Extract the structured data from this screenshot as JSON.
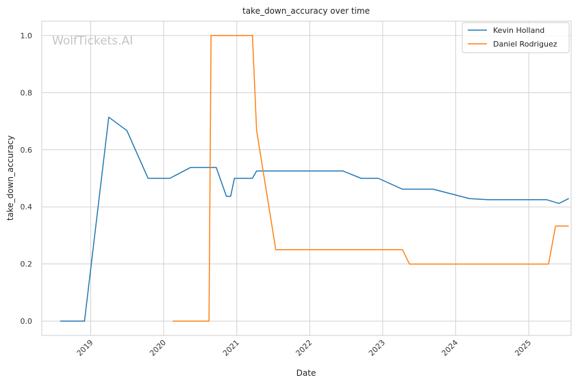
{
  "watermark": "WolfTickets.AI",
  "colors": {
    "grid": "#d0d0d0",
    "spine": "#cccccc",
    "kevin": "#1f77b4",
    "daniel": "#ff7f0e"
  },
  "chart_data": {
    "type": "line",
    "title": "take_down_accuracy over time",
    "xlabel": "Date",
    "ylabel": "take_down_accuracy",
    "x_type": "date",
    "xlim": [
      "2018-05-01",
      "2025-08-01"
    ],
    "ylim": [
      -0.05,
      1.05
    ],
    "x_ticks": [
      "2019",
      "2020",
      "2021",
      "2022",
      "2023",
      "2024",
      "2025"
    ],
    "y_ticks": [
      "0.0",
      "0.2",
      "0.4",
      "0.6",
      "0.8",
      "1.0"
    ],
    "grid": true,
    "legend_position": "top-right",
    "series": [
      {
        "name": "Kevin Holland",
        "color": "#1f77b4",
        "points": [
          [
            "2018-08-01",
            0.0
          ],
          [
            "2018-12-01",
            0.0
          ],
          [
            "2019-04-01",
            0.714
          ],
          [
            "2019-07-01",
            0.667
          ],
          [
            "2019-10-15",
            0.5
          ],
          [
            "2020-02-01",
            0.5
          ],
          [
            "2020-05-15",
            0.538
          ],
          [
            "2020-09-20",
            0.538
          ],
          [
            "2020-11-10",
            0.437
          ],
          [
            "2020-12-01",
            0.437
          ],
          [
            "2020-12-20",
            0.5
          ],
          [
            "2021-03-20",
            0.5
          ],
          [
            "2021-04-10",
            0.526
          ],
          [
            "2022-06-15",
            0.526
          ],
          [
            "2022-09-15",
            0.5
          ],
          [
            "2022-12-10",
            0.5
          ],
          [
            "2023-04-10",
            0.462
          ],
          [
            "2023-09-10",
            0.462
          ],
          [
            "2024-03-10",
            0.429
          ],
          [
            "2024-06-10",
            0.425
          ],
          [
            "2025-04-01",
            0.425
          ],
          [
            "2025-06-01",
            0.412
          ],
          [
            "2025-07-20",
            0.429
          ]
        ]
      },
      {
        "name": "Daniel Rodriguez",
        "color": "#ff7f0e",
        "points": [
          [
            "2020-02-15",
            0.0
          ],
          [
            "2020-08-15",
            0.0
          ],
          [
            "2020-08-25",
            1.0
          ],
          [
            "2021-03-20",
            1.0
          ],
          [
            "2021-04-10",
            0.667
          ],
          [
            "2021-07-15",
            0.25
          ],
          [
            "2023-04-10",
            0.25
          ],
          [
            "2023-05-15",
            0.2
          ],
          [
            "2025-04-10",
            0.2
          ],
          [
            "2025-05-15",
            0.333
          ],
          [
            "2025-07-20",
            0.333
          ]
        ]
      }
    ]
  }
}
